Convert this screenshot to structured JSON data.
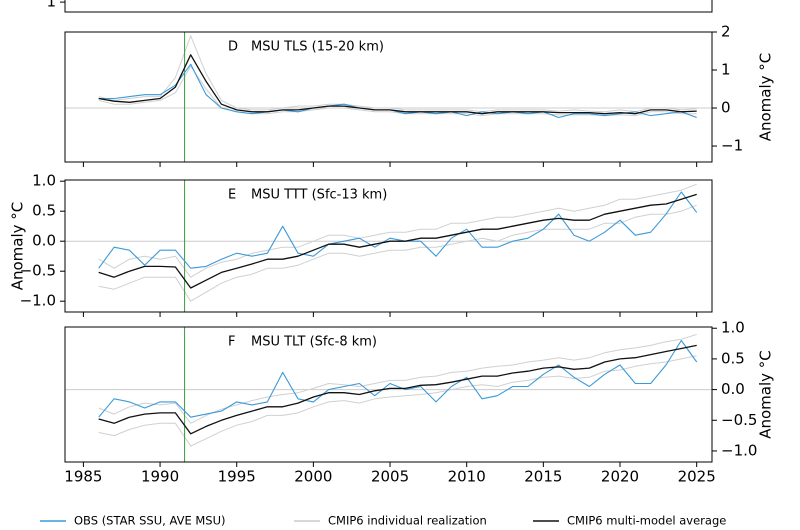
{
  "chart_data": [
    {
      "type": "line",
      "xlim": [
        1983.8,
        2026
      ],
      "ylim": [
        0.74,
        3.16
      ],
      "yticks": [
        1
      ],
      "ytick_side": "left"
    },
    {
      "type": "line",
      "panel_letter": "D",
      "title": "MSU TLS (15-20 km)",
      "ylabel": "Anomaly °C",
      "ylabel_side": "right",
      "ytick_side": "right",
      "xlim": [
        1983.8,
        2026
      ],
      "ylim": [
        -1.42,
        2.0
      ],
      "yticks": [
        2,
        1,
        0,
        {
          "value": -1,
          "label": "−1"
        }
      ],
      "event_line": {
        "x": 1991.6,
        "color": "#3c9a3c"
      },
      "x": [
        1986,
        1987,
        1988,
        1989,
        1990,
        1991,
        1992,
        1993,
        1994,
        1995,
        1996,
        1997,
        1998,
        1999,
        2000,
        2001,
        2002,
        2003,
        2004,
        2005,
        2006,
        2007,
        2008,
        2009,
        2010,
        2011,
        2012,
        2013,
        2014,
        2015,
        2016,
        2017,
        2018,
        2019,
        2020,
        2021,
        2022,
        2023,
        2024,
        2025
      ],
      "realizations": {
        "color": "#d0d0d0",
        "lines": [
          [
            0.3,
            0.2,
            0.25,
            0.3,
            0.3,
            0.8,
            1.9,
            0.9,
            0.2,
            0.0,
            -0.05,
            -0.05,
            0.0,
            0.05,
            0.05,
            0.1,
            0.1,
            0.05,
            0.0,
            0.0,
            -0.05,
            -0.05,
            -0.05,
            -0.05,
            -0.05,
            -0.1,
            -0.05,
            -0.05,
            -0.05,
            -0.05,
            -0.08,
            -0.05,
            -0.08,
            -0.1,
            -0.05,
            -0.1,
            0.0,
            0.0,
            -0.05,
            -0.02
          ],
          [
            0.2,
            0.1,
            0.1,
            0.15,
            0.2,
            0.4,
            1.1,
            0.5,
            0.0,
            -0.1,
            -0.15,
            -0.15,
            -0.1,
            -0.1,
            -0.05,
            0.0,
            0.0,
            -0.05,
            -0.1,
            -0.1,
            -0.15,
            -0.15,
            -0.15,
            -0.15,
            -0.15,
            -0.2,
            -0.15,
            -0.15,
            -0.15,
            -0.15,
            -0.18,
            -0.18,
            -0.18,
            -0.2,
            -0.18,
            -0.2,
            -0.1,
            -0.1,
            -0.15,
            -0.15
          ]
        ]
      },
      "series": [
        {
          "name": "OBS",
          "color": "#3a9ad9",
          "values": [
            0.25,
            0.25,
            0.3,
            0.35,
            0.35,
            0.6,
            1.15,
            0.35,
            0.0,
            -0.1,
            -0.15,
            -0.1,
            -0.05,
            -0.1,
            0.0,
            0.05,
            0.1,
            0.0,
            -0.05,
            -0.05,
            -0.15,
            -0.1,
            -0.15,
            -0.1,
            -0.2,
            -0.1,
            -0.15,
            -0.1,
            -0.15,
            -0.1,
            -0.25,
            -0.15,
            -0.15,
            -0.2,
            -0.15,
            -0.1,
            -0.2,
            -0.15,
            -0.1,
            -0.25
          ]
        },
        {
          "name": "MEAN",
          "color": "#111111",
          "values": [
            0.25,
            0.18,
            0.15,
            0.2,
            0.25,
            0.55,
            1.4,
            0.7,
            0.1,
            -0.05,
            -0.1,
            -0.1,
            -0.05,
            -0.05,
            0.0,
            0.05,
            0.05,
            0.0,
            -0.05,
            -0.05,
            -0.1,
            -0.1,
            -0.1,
            -0.1,
            -0.1,
            -0.15,
            -0.1,
            -0.1,
            -0.1,
            -0.1,
            -0.12,
            -0.12,
            -0.12,
            -0.15,
            -0.12,
            -0.15,
            -0.05,
            -0.05,
            -0.1,
            -0.08
          ]
        }
      ]
    },
    {
      "type": "line",
      "panel_letter": "E",
      "title": "MSU TTT (Sfc-13 km)",
      "ylabel": "Anomaly °C",
      "ylabel_side": "left",
      "ytick_side": "left",
      "xlim": [
        1983.8,
        2026
      ],
      "ylim": [
        -1.18,
        1.02
      ],
      "yticks": [
        {
          "value": 1,
          "label": "1.0"
        },
        {
          "value": 0.5,
          "label": "0.5"
        },
        {
          "value": 0,
          "label": "0.0"
        },
        {
          "value": -0.5,
          "label": "−0.5"
        },
        {
          "value": -1,
          "label": "−1.0"
        }
      ],
      "event_line": {
        "x": 1991.6,
        "color": "#3c9a3c"
      },
      "x": [
        1986,
        1987,
        1988,
        1989,
        1990,
        1991,
        1992,
        1993,
        1994,
        1995,
        1996,
        1997,
        1998,
        1999,
        2000,
        2001,
        2002,
        2003,
        2004,
        2005,
        2006,
        2007,
        2008,
        2009,
        2010,
        2011,
        2012,
        2013,
        2014,
        2015,
        2016,
        2017,
        2018,
        2019,
        2020,
        2021,
        2022,
        2023,
        2024,
        2025
      ],
      "realizations": {
        "color": "#d0d0d0",
        "lines": [
          [
            -0.3,
            -0.45,
            -0.3,
            -0.25,
            -0.3,
            -0.25,
            -0.6,
            -0.45,
            -0.35,
            -0.3,
            -0.2,
            -0.15,
            -0.1,
            -0.1,
            0.0,
            0.1,
            0.1,
            0.05,
            0.1,
            0.15,
            0.15,
            0.2,
            0.2,
            0.3,
            0.3,
            0.35,
            0.4,
            0.4,
            0.45,
            0.5,
            0.55,
            0.5,
            0.55,
            0.6,
            0.7,
            0.7,
            0.75,
            0.8,
            0.85,
            0.95
          ],
          [
            -0.75,
            -0.8,
            -0.7,
            -0.6,
            -0.6,
            -0.6,
            -1.0,
            -0.85,
            -0.7,
            -0.6,
            -0.55,
            -0.45,
            -0.45,
            -0.4,
            -0.3,
            -0.2,
            -0.2,
            -0.25,
            -0.2,
            -0.15,
            -0.15,
            -0.1,
            -0.1,
            -0.05,
            0.0,
            0.05,
            0.0,
            0.1,
            0.15,
            0.2,
            0.2,
            0.2,
            0.2,
            0.3,
            0.3,
            0.4,
            0.45,
            0.45,
            0.5,
            0.6
          ]
        ]
      },
      "series": [
        {
          "name": "OBS",
          "color": "#3a9ad9",
          "values": [
            -0.45,
            -0.1,
            -0.15,
            -0.4,
            -0.15,
            -0.15,
            -0.45,
            -0.42,
            -0.3,
            -0.2,
            -0.25,
            -0.2,
            0.25,
            -0.2,
            -0.25,
            -0.05,
            0.0,
            0.05,
            -0.1,
            0.05,
            0.0,
            0.0,
            -0.25,
            0.05,
            0.2,
            -0.1,
            -0.1,
            0.0,
            0.05,
            0.2,
            0.45,
            0.1,
            0.0,
            0.15,
            0.35,
            0.1,
            0.15,
            0.45,
            0.82,
            0.48
          ]
        },
        {
          "name": "MEAN",
          "color": "#111111",
          "values": [
            -0.52,
            -0.6,
            -0.5,
            -0.42,
            -0.42,
            -0.43,
            -0.78,
            -0.65,
            -0.52,
            -0.45,
            -0.38,
            -0.3,
            -0.3,
            -0.25,
            -0.15,
            -0.05,
            -0.05,
            -0.1,
            -0.05,
            0.0,
            0.0,
            0.05,
            0.05,
            0.1,
            0.15,
            0.2,
            0.2,
            0.25,
            0.3,
            0.35,
            0.38,
            0.35,
            0.35,
            0.45,
            0.5,
            0.55,
            0.6,
            0.62,
            0.7,
            0.78
          ]
        }
      ]
    },
    {
      "type": "line",
      "panel_letter": "F",
      "title": "MSU TLT (Sfc-8 km)",
      "ylabel": "Anomaly °C",
      "ylabel_side": "right",
      "ytick_side": "right",
      "xlim": [
        1983.8,
        2026
      ],
      "ylim": [
        -1.18,
        1.02
      ],
      "yticks": [
        {
          "value": 1,
          "label": "1.0"
        },
        {
          "value": 0.5,
          "label": "0.5"
        },
        {
          "value": 0,
          "label": "0.0"
        },
        {
          "value": -0.5,
          "label": "−0.5"
        },
        {
          "value": -1,
          "label": "−1.0"
        }
      ],
      "xticks": [
        1985,
        1990,
        1995,
        2000,
        2005,
        2010,
        2015,
        2020,
        2025
      ],
      "event_line": {
        "x": 1991.6,
        "color": "#3c9a3c"
      },
      "x": [
        1986,
        1987,
        1988,
        1989,
        1990,
        1991,
        1992,
        1993,
        1994,
        1995,
        1996,
        1997,
        1998,
        1999,
        2000,
        2001,
        2002,
        2003,
        2004,
        2005,
        2006,
        2007,
        2008,
        2009,
        2010,
        2011,
        2012,
        2013,
        2014,
        2015,
        2016,
        2017,
        2018,
        2019,
        2020,
        2021,
        2022,
        2023,
        2024,
        2025
      ],
      "realizations": {
        "color": "#d0d0d0",
        "lines": [
          [
            -0.3,
            -0.4,
            -0.28,
            -0.22,
            -0.25,
            -0.22,
            -0.55,
            -0.42,
            -0.32,
            -0.25,
            -0.18,
            -0.12,
            -0.08,
            -0.05,
            0.02,
            0.1,
            0.08,
            0.05,
            0.1,
            0.15,
            0.15,
            0.2,
            0.22,
            0.28,
            0.3,
            0.35,
            0.38,
            0.4,
            0.45,
            0.48,
            0.52,
            0.48,
            0.52,
            0.6,
            0.65,
            0.68,
            0.72,
            0.78,
            0.82,
            0.9
          ],
          [
            -0.7,
            -0.75,
            -0.65,
            -0.58,
            -0.55,
            -0.55,
            -0.92,
            -0.8,
            -0.68,
            -0.58,
            -0.52,
            -0.42,
            -0.42,
            -0.38,
            -0.28,
            -0.2,
            -0.18,
            -0.22,
            -0.15,
            -0.12,
            -0.1,
            -0.08,
            -0.05,
            0.0,
            0.05,
            0.08,
            0.05,
            0.12,
            0.15,
            0.2,
            0.22,
            0.18,
            0.2,
            0.3,
            0.32,
            0.38,
            0.42,
            0.45,
            0.5,
            0.55
          ]
        ]
      },
      "series": [
        {
          "name": "OBS",
          "color": "#3a9ad9",
          "values": [
            -0.45,
            -0.15,
            -0.2,
            -0.3,
            -0.2,
            -0.2,
            -0.45,
            -0.4,
            -0.35,
            -0.2,
            -0.25,
            -0.2,
            0.28,
            -0.15,
            -0.2,
            0.0,
            0.05,
            0.1,
            -0.1,
            0.1,
            0.0,
            0.05,
            -0.2,
            0.05,
            0.2,
            -0.15,
            -0.1,
            0.05,
            0.05,
            0.25,
            0.4,
            0.2,
            0.05,
            0.25,
            0.4,
            0.1,
            0.1,
            0.4,
            0.8,
            0.45
          ]
        },
        {
          "name": "MEAN",
          "color": "#111111",
          "values": [
            -0.48,
            -0.55,
            -0.45,
            -0.4,
            -0.38,
            -0.38,
            -0.72,
            -0.6,
            -0.5,
            -0.42,
            -0.35,
            -0.28,
            -0.28,
            -0.22,
            -0.12,
            -0.05,
            -0.05,
            -0.08,
            -0.02,
            0.02,
            0.02,
            0.07,
            0.08,
            0.12,
            0.17,
            0.22,
            0.22,
            0.27,
            0.3,
            0.35,
            0.37,
            0.33,
            0.35,
            0.45,
            0.5,
            0.52,
            0.57,
            0.62,
            0.67,
            0.72
          ]
        }
      ]
    }
  ],
  "legend": {
    "entries": [
      {
        "name": "OBS (STAR SSU, AVE MSU)",
        "color": "#3a9ad9"
      },
      {
        "name": "CMIP6 individual realization",
        "color": "#cccccc"
      },
      {
        "name": "CMIP6 multi-model average",
        "color": "#111111"
      }
    ]
  }
}
